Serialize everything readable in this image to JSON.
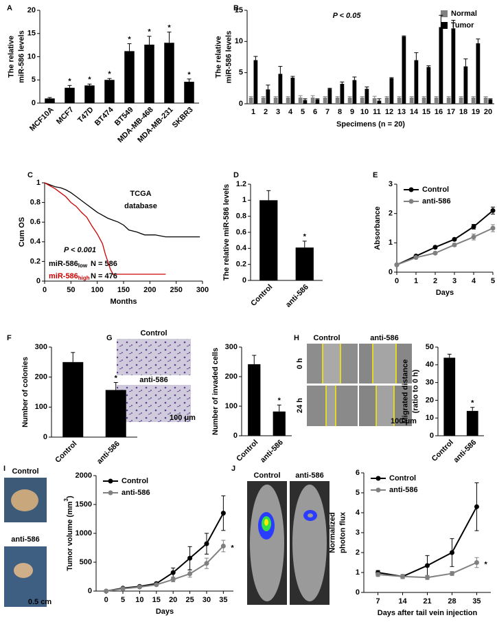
{
  "chart_data": [
    {
      "panel": "A",
      "type": "bar",
      "categories": [
        "MCF10A",
        "MCF7",
        "T47D",
        "BT474",
        "BT549",
        "MDA-MB-468",
        "MDA-MB-231",
        "SKBR3"
      ],
      "values": [
        1,
        3.3,
        3.8,
        5,
        11.2,
        12.6,
        13,
        4.6
      ],
      "errors": [
        0.2,
        0.5,
        0.3,
        0.3,
        1.6,
        1.8,
        2.3,
        0.6
      ],
      "significance": [
        null,
        "*",
        "*",
        "*",
        "*",
        "*",
        "*",
        "*"
      ],
      "color": "#000000",
      "ylabel": [
        "The relative",
        "miR-586 levels"
      ],
      "ylim": [
        0,
        20
      ],
      "yticks": [
        0,
        5,
        10,
        15,
        20
      ]
    },
    {
      "panel": "B",
      "type": "grouped_bar",
      "title": "P < 0.05",
      "categories": [
        "1",
        "2",
        "3",
        "4",
        "5",
        "6",
        "7",
        "8",
        "9",
        "10",
        "11",
        "12",
        "13",
        "14",
        "15",
        "16",
        "17",
        "18",
        "19",
        "20"
      ],
      "series": [
        {
          "name": "Normal",
          "color": "#808080",
          "values": [
            1,
            1,
            1,
            1,
            1,
            1,
            1,
            1,
            1,
            1,
            0.9,
            1,
            1,
            1,
            1,
            1,
            1,
            1,
            1,
            1
          ],
          "errors": [
            0.15,
            0.15,
            0.15,
            0.15,
            0.3,
            0.3,
            0.15,
            0.15,
            0.15,
            0.15,
            0.3,
            0.15,
            0.15,
            0.15,
            0.15,
            0.15,
            0.15,
            0.15,
            0.15,
            0.15
          ]
        },
        {
          "name": "Tumor",
          "color": "#000000",
          "values": [
            7,
            2.3,
            4.8,
            4.2,
            0.6,
            0.7,
            2.4,
            3.2,
            3.8,
            2.4,
            0.5,
            4.1,
            10.8,
            7,
            5.9,
            12.3,
            12.1,
            6,
            9.7,
            0.7
          ],
          "errors": [
            0.6,
            0.7,
            1.2,
            0.2,
            0.2,
            0.1,
            0.1,
            0.3,
            0.5,
            0.3,
            0.3,
            0.1,
            0.1,
            1.2,
            0.2,
            1.9,
            1.3,
            1.2,
            0.7,
            0.1
          ]
        }
      ],
      "xlabel": "Specimens (n = 20)",
      "ylabel": [
        "The relative",
        "miR-586 levels"
      ],
      "ylim": [
        0,
        15
      ],
      "yticks": [
        0,
        5,
        10,
        15
      ],
      "legend": "upper right"
    },
    {
      "panel": "C",
      "type": "survival",
      "annotation": [
        "TCGA",
        "database"
      ],
      "pvalue": "P < 0.001",
      "series": [
        {
          "name": "miR-586",
          "subscript": "low",
          "n_label": "N = 586",
          "color": "#000000",
          "x": [
            0,
            10,
            20,
            30,
            40,
            50,
            60,
            70,
            80,
            90,
            100,
            110,
            120,
            130,
            140,
            150,
            160,
            175,
            190,
            210,
            230,
            250,
            280,
            295
          ],
          "values": [
            1,
            0.98,
            0.96,
            0.95,
            0.93,
            0.9,
            0.86,
            0.82,
            0.78,
            0.74,
            0.7,
            0.67,
            0.64,
            0.62,
            0.6,
            0.57,
            0.52,
            0.5,
            0.47,
            0.47,
            0.45,
            0.45,
            0.45,
            0.45
          ]
        },
        {
          "name": "miR-586",
          "subscript": "high",
          "n_label": "N = 476",
          "color": "#cc0000",
          "x": [
            0,
            10,
            20,
            30,
            40,
            50,
            60,
            70,
            80,
            90,
            100,
            110,
            115,
            120,
            125,
            130,
            230
          ],
          "values": [
            1,
            0.97,
            0.94,
            0.9,
            0.86,
            0.8,
            0.76,
            0.7,
            0.65,
            0.56,
            0.48,
            0.38,
            0.28,
            0.2,
            0.12,
            0.07,
            0.07
          ]
        }
      ],
      "xlabel": "Months",
      "ylabel": [
        "Cum OS"
      ],
      "xlim": [
        0,
        300
      ],
      "xticks": [
        0,
        50,
        100,
        150,
        200,
        250,
        300
      ],
      "ylim": [
        0,
        1
      ],
      "yticks": [
        0,
        0.2,
        0.4,
        0.6,
        0.8,
        1
      ]
    },
    {
      "panel": "D",
      "type": "bar",
      "categories": [
        "Control",
        "anti-586"
      ],
      "values": [
        1,
        0.41
      ],
      "errors": [
        0.12,
        0.08
      ],
      "significance": [
        null,
        "*"
      ],
      "color": "#000000",
      "ylabel": [
        "The relative miR-586 levels"
      ],
      "ylim": [
        0,
        1.2
      ],
      "yticks": [
        0,
        0.2,
        0.4,
        0.6,
        0.8,
        1,
        1.2
      ]
    },
    {
      "panel": "E",
      "type": "line",
      "x": [
        0,
        1,
        2,
        3,
        4,
        5
      ],
      "series": [
        {
          "name": "Control",
          "color": "#000000",
          "values": [
            0.25,
            0.55,
            0.85,
            1.12,
            1.55,
            2.1
          ],
          "errors": [
            0.02,
            0.03,
            0.04,
            0.04,
            0.08,
            0.12
          ]
        },
        {
          "name": "anti-586",
          "color": "#808080",
          "values": [
            0.25,
            0.5,
            0.65,
            0.93,
            1.2,
            1.5
          ],
          "errors": [
            0.02,
            0.03,
            0.04,
            0.05,
            0.1,
            0.12
          ]
        }
      ],
      "annotation": "*",
      "xlabel": "Days",
      "ylabel": [
        "Absorbance"
      ],
      "xlim": [
        0,
        5
      ],
      "xticks": [
        0,
        1,
        2,
        3,
        4,
        5
      ],
      "ylim": [
        0,
        3
      ],
      "yticks": [
        0,
        1,
        2,
        3
      ],
      "legend": "upper left"
    },
    {
      "panel": "F",
      "type": "bar",
      "categories": [
        "Control",
        "anti-586"
      ],
      "values": [
        250,
        157
      ],
      "errors": [
        32,
        25
      ],
      "significance": [
        null,
        "*"
      ],
      "color": "#000000",
      "ylabel": [
        "Number of colonies"
      ],
      "ylim": [
        0,
        300
      ],
      "yticks": [
        0,
        100,
        200,
        300
      ]
    },
    {
      "panel": "G",
      "type": "bar",
      "image_labels": [
        "Control",
        "anti-586",
        "100 μm"
      ],
      "categories": [
        "Control",
        "anti-586"
      ],
      "values": [
        242,
        82
      ],
      "errors": [
        30,
        22
      ],
      "significance": [
        null,
        "*"
      ],
      "color": "#000000",
      "ylabel": [
        "Number of invaded cells"
      ],
      "ylim": [
        0,
        300
      ],
      "yticks": [
        0,
        100,
        200,
        300
      ]
    },
    {
      "panel": "H",
      "type": "bar",
      "image_labels": [
        "Control",
        "anti-586",
        "0 h",
        "24 h",
        "100 μm"
      ],
      "categories": [
        "Control",
        "anti-586"
      ],
      "values": [
        44,
        14
      ],
      "errors": [
        2,
        2
      ],
      "significance": [
        null,
        "*"
      ],
      "color": "#000000",
      "ylabel": [
        "Migrated distance",
        "(ratio to 0 h)"
      ],
      "ylim": [
        0,
        50
      ],
      "yticks": [
        0,
        10,
        20,
        30,
        40,
        50
      ]
    },
    {
      "panel": "I",
      "type": "line",
      "image_labels": [
        "Control",
        "anti-586",
        "0.5 cm"
      ],
      "x": [
        0,
        5,
        10,
        15,
        20,
        25,
        30,
        35
      ],
      "series": [
        {
          "name": "Control",
          "color": "#000000",
          "values": [
            0,
            50,
            80,
            130,
            320,
            570,
            820,
            1350
          ],
          "errors": [
            0,
            10,
            15,
            20,
            80,
            200,
            180,
            300
          ]
        },
        {
          "name": "anti-586",
          "color": "#808080",
          "values": [
            0,
            40,
            70,
            110,
            200,
            300,
            480,
            780
          ],
          "errors": [
            0,
            10,
            15,
            20,
            40,
            60,
            90,
            100
          ]
        }
      ],
      "annotation": "*",
      "xlabel": "Days",
      "ylabel": [
        "Tumor volume (mm"
      ],
      "ylabel_sup": "3",
      "ylabel_end": ")",
      "xlim": [
        -3,
        38
      ],
      "xticks": [
        0,
        5,
        10,
        15,
        20,
        25,
        30,
        35
      ],
      "ylim": [
        0,
        2000
      ],
      "yticks": [
        0,
        500,
        1000,
        1500,
        2000
      ],
      "legend": "upper left"
    },
    {
      "panel": "J",
      "type": "line",
      "image_labels": [
        "Control",
        "anti-586"
      ],
      "x": [
        7,
        14,
        21,
        28,
        35
      ],
      "series": [
        {
          "name": "Control",
          "color": "#000000",
          "values": [
            1,
            0.8,
            1.35,
            2,
            4.3
          ],
          "errors": [
            0.1,
            0.1,
            0.5,
            0.7,
            1.2
          ]
        },
        {
          "name": "anti-586",
          "color": "#808080",
          "values": [
            0.9,
            0.8,
            0.75,
            0.95,
            1.5
          ],
          "errors": [
            0.1,
            0.1,
            0.1,
            0.1,
            0.25
          ]
        }
      ],
      "annotation": "*",
      "xlabel": "Days after tail vein injection",
      "ylabel": [
        "Normalized",
        "photon flux"
      ],
      "xlim": [
        3,
        39
      ],
      "xticks": [
        7,
        14,
        21,
        28,
        35
      ],
      "ylim": [
        0,
        6
      ],
      "yticks": [
        0,
        1,
        2,
        3,
        4,
        5,
        6
      ],
      "legend": "upper left"
    }
  ]
}
